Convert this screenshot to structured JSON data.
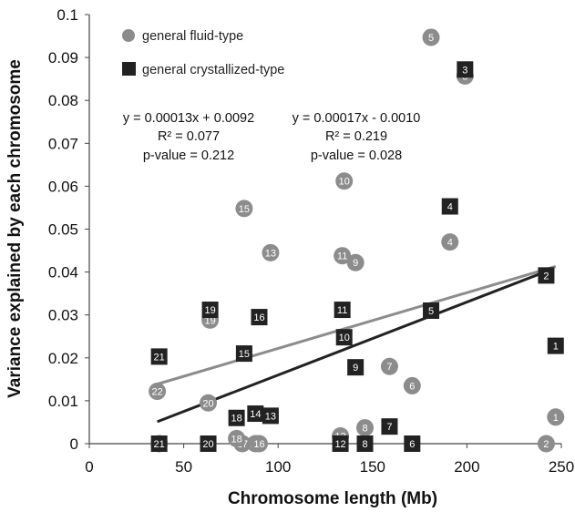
{
  "chart_data": {
    "type": "scatter",
    "xlabel": "Chromosome length (Mb)",
    "ylabel": "Variance explained by each chromosome",
    "xlim": [
      0,
      250
    ],
    "ylim": [
      0,
      0.1
    ],
    "x_ticks": [
      "0",
      "50",
      "100",
      "150",
      "200",
      "250"
    ],
    "y_ticks": [
      "0",
      "0.01",
      "0.02",
      "0.03",
      "0.04",
      "0.05",
      "0.06",
      "0.07",
      "0.08",
      "0.09",
      "0.1"
    ],
    "grid": false,
    "legend_position": "top-left",
    "series": [
      {
        "name": "general fluid-type",
        "marker": "circle",
        "color": "#8c8c8c",
        "points": [
          {
            "label": "1",
            "x": 247,
            "y": 0.0062
          },
          {
            "label": "2",
            "x": 242,
            "y": 0.0
          },
          {
            "label": "3",
            "x": 199,
            "y": 0.0857
          },
          {
            "label": "4",
            "x": 191,
            "y": 0.047
          },
          {
            "label": "5",
            "x": 181,
            "y": 0.0947
          },
          {
            "label": "6",
            "x": 171,
            "y": 0.0135
          },
          {
            "label": "7",
            "x": 159,
            "y": 0.018
          },
          {
            "label": "8",
            "x": 146,
            "y": 0.0037
          },
          {
            "label": "9",
            "x": 141,
            "y": 0.0422
          },
          {
            "label": "10",
            "x": 135,
            "y": 0.0612
          },
          {
            "label": "11",
            "x": 134,
            "y": 0.0438
          },
          {
            "label": "12",
            "x": 133,
            "y": 0.0018
          },
          {
            "label": "13",
            "x": 96,
            "y": 0.0445
          },
          {
            "label": "14",
            "x": 88,
            "y": 0.0
          },
          {
            "label": "15",
            "x": 82,
            "y": 0.0548
          },
          {
            "label": "16",
            "x": 90,
            "y": 0.0
          },
          {
            "label": "17",
            "x": 81,
            "y": 0.0
          },
          {
            "label": "18",
            "x": 78,
            "y": 0.0012
          },
          {
            "label": "19",
            "x": 64,
            "y": 0.0288
          },
          {
            "label": "20",
            "x": 63,
            "y": 0.0095
          },
          {
            "label": "21",
            "x": 37,
            "y": 0.0
          },
          {
            "label": "22",
            "x": 36,
            "y": 0.0122
          }
        ]
      },
      {
        "name": "general crystallized-type",
        "marker": "square",
        "color": "#222222",
        "points": [
          {
            "label": "1",
            "x": 247,
            "y": 0.0228
          },
          {
            "label": "2",
            "x": 242,
            "y": 0.0392
          },
          {
            "label": "3",
            "x": 199,
            "y": 0.0872
          },
          {
            "label": "4",
            "x": 191,
            "y": 0.0553
          },
          {
            "label": "5",
            "x": 181,
            "y": 0.031
          },
          {
            "label": "6",
            "x": 171,
            "y": 0.0
          },
          {
            "label": "7",
            "x": 159,
            "y": 0.004
          },
          {
            "label": "8",
            "x": 146,
            "y": 0.0
          },
          {
            "label": "9",
            "x": 141,
            "y": 0.0178
          },
          {
            "label": "10",
            "x": 135,
            "y": 0.0248
          },
          {
            "label": "11",
            "x": 134,
            "y": 0.0312
          },
          {
            "label": "12",
            "x": 133,
            "y": 0.0
          },
          {
            "label": "13",
            "x": 96,
            "y": 0.0065
          },
          {
            "label": "14",
            "x": 88,
            "y": 0.007
          },
          {
            "label": "15",
            "x": 82,
            "y": 0.021
          },
          {
            "label": "16",
            "x": 90,
            "y": 0.0295
          },
          {
            "label": "18",
            "x": 78,
            "y": 0.006
          },
          {
            "label": "19",
            "x": 64,
            "y": 0.0312
          },
          {
            "label": "20",
            "x": 63,
            "y": 0.0
          },
          {
            "label": "21",
            "x": 37,
            "y": 0.0203
          },
          {
            "label": "21",
            "x": 37,
            "y": 0.0
          }
        ]
      }
    ],
    "trendlines": [
      {
        "series": "general fluid-type",
        "slope": 0.00013,
        "intercept": 0.0092,
        "x_range": [
          36,
          247
        ],
        "color": "#8c8c8c",
        "equation": "y = 0.00013x + 0.0092",
        "r2": "R² = 0.077",
        "pvalue": "p-value = 0.212"
      },
      {
        "series": "general crystallized-type",
        "slope": 0.00017,
        "intercept": -0.001,
        "x_range": [
          36,
          242
        ],
        "color": "#222222",
        "equation": "y = 0.00017x - 0.0010",
        "r2": "R² = 0.219",
        "pvalue": "p-value = 0.028"
      }
    ]
  }
}
